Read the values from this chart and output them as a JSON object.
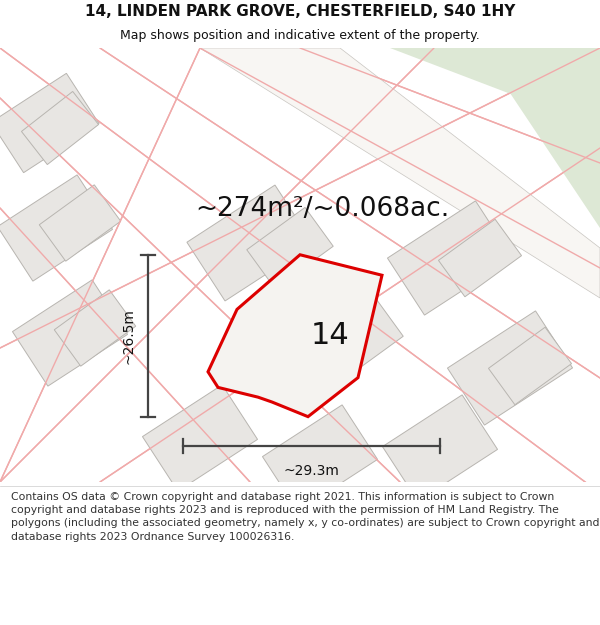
{
  "title": "14, LINDEN PARK GROVE, CHESTERFIELD, S40 1HY",
  "subtitle": "Map shows position and indicative extent of the property.",
  "area_text": "~274m²/~0.068ac.",
  "label_14": "14",
  "dim_width": "~29.3m",
  "dim_height": "~26.5m",
  "footer": "Contains OS data © Crown copyright and database right 2021. This information is subject to Crown copyright and database rights 2023 and is reproduced with the permission of HM Land Registry. The polygons (including the associated geometry, namely x, y co-ordinates) are subject to Crown copyright and database rights 2023 Ordnance Survey 100026316.",
  "map_bg": "#f5f3f0",
  "road_fill": "#ffffff",
  "plot_fill": "#e8e6e3",
  "plot_stroke": "#b8b5b0",
  "street_line": "#f0aaaa",
  "green_fill": "#dde8d5",
  "highlight_fill": "#f5f3f0",
  "highlight_stroke": "#dd0000",
  "dim_color": "#444444",
  "text_color": "#111111",
  "title_fontsize": 11,
  "subtitle_fontsize": 9,
  "area_fontsize": 19,
  "label_fontsize": 22,
  "dim_fontsize": 10,
  "footer_fontsize": 7.8
}
